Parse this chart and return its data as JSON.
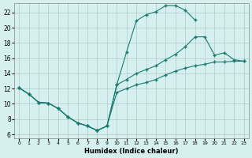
{
  "xlabel": "Humidex (Indice chaleur)",
  "background_color": "#d6f0f0",
  "grid_color": "#b0c8c8",
  "line_color": "#1a7a6e",
  "xlim": [
    -0.5,
    23.5
  ],
  "ylim": [
    5.5,
    23.2
  ],
  "xticks": [
    0,
    1,
    2,
    3,
    4,
    5,
    6,
    7,
    8,
    9,
    10,
    11,
    12,
    13,
    14,
    15,
    16,
    17,
    18,
    19,
    20,
    21,
    22,
    23
  ],
  "yticks": [
    6,
    8,
    10,
    12,
    14,
    16,
    18,
    20,
    22
  ],
  "line1_x": [
    0,
    1,
    2,
    3,
    4,
    5,
    6,
    7,
    8,
    9,
    10,
    11,
    12,
    13,
    14,
    15,
    16,
    17,
    18
  ],
  "line1_y": [
    12.1,
    11.3,
    10.2,
    10.1,
    9.4,
    8.3,
    7.5,
    7.1,
    6.5,
    7.1,
    12.5,
    16.8,
    20.9,
    21.7,
    22.1,
    22.9,
    22.9,
    22.3,
    21.0
  ],
  "line2_x": [
    0,
    1,
    2,
    3,
    4,
    5,
    6,
    7,
    8,
    9,
    10,
    11,
    12,
    13,
    14,
    15,
    16,
    17,
    18,
    19,
    20,
    21,
    22,
    23
  ],
  "line2_y": [
    12.1,
    11.3,
    10.2,
    10.1,
    9.4,
    8.3,
    7.5,
    7.1,
    6.5,
    7.1,
    11.5,
    12.0,
    12.5,
    12.8,
    13.2,
    13.8,
    14.3,
    14.7,
    15.0,
    15.2,
    15.5,
    15.5,
    15.6,
    15.6
  ],
  "line3_x": [
    0,
    1,
    2,
    3,
    4,
    5,
    6,
    7,
    8,
    9,
    10,
    11,
    12,
    13,
    14,
    15,
    16,
    17,
    18,
    19,
    20,
    21,
    22,
    23
  ],
  "line3_y": [
    12.1,
    11.3,
    10.2,
    10.1,
    9.4,
    8.3,
    7.5,
    7.1,
    6.5,
    7.1,
    12.5,
    13.2,
    14.0,
    14.5,
    15.0,
    15.8,
    16.5,
    17.5,
    18.8,
    18.8,
    16.4,
    16.7,
    15.8,
    15.6
  ]
}
